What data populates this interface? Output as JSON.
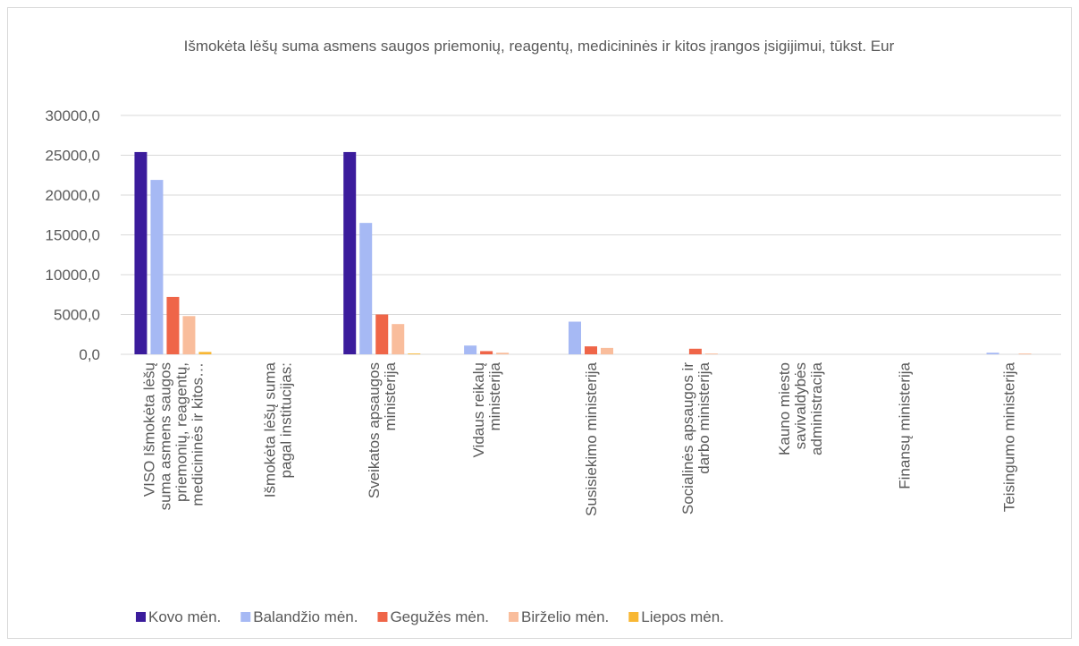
{
  "chart_data": {
    "type": "bar",
    "title": "Išmokėta lėšų suma asmens saugos priemonių, reagentų, medicininės ir kitos įrangos įsigijimui, tūkst. Eur",
    "categories": [
      "VISO Išmokėta lėšų suma asmens saugos priemonių, reagentų, medicininės ir kitos…",
      "Išmokėta lėšų suma pagal institucijas:",
      "Sveikatos apsaugos ministerija",
      "Vidaus reikalų ministerija",
      "Susisiekimo ministerija",
      "Socialinės apsaugos ir darbo ministerija",
      "Kauno miesto savivaldybės administracija",
      "Finansų ministerija",
      "Teisingumo ministerija"
    ],
    "series": [
      {
        "name": "Kovo mėn.",
        "color": "#3b1c9c",
        "values": [
          25400,
          null,
          25400,
          0,
          0,
          0,
          0,
          0,
          0
        ]
      },
      {
        "name": "Balandžio mėn.",
        "color": "#a6b9f4",
        "values": [
          21900,
          null,
          16500,
          1100,
          4100,
          0,
          0,
          0,
          200
        ]
      },
      {
        "name": "Gegužės mėn.",
        "color": "#ef6548",
        "values": [
          7200,
          null,
          5000,
          400,
          1000,
          700,
          0,
          0,
          0
        ]
      },
      {
        "name": "Birželio mėn.",
        "color": "#f9bd9c",
        "values": [
          4800,
          null,
          3800,
          200,
          800,
          100,
          0,
          0,
          100
        ]
      },
      {
        "name": "Liepos mėn.",
        "color": "#f8b733",
        "values": [
          300,
          null,
          100,
          0,
          0,
          0,
          0,
          0,
          0
        ]
      }
    ],
    "ylim": [
      0,
      30000
    ],
    "yticks": [
      {
        "value": 0,
        "label": "0,0"
      },
      {
        "value": 5000,
        "label": "5000,0"
      },
      {
        "value": 10000,
        "label": "10000,0"
      },
      {
        "value": 15000,
        "label": "15000,0"
      },
      {
        "value": 20000,
        "label": "20000,0"
      },
      {
        "value": 25000,
        "label": "25000,0"
      },
      {
        "value": 30000,
        "label": "30000,0"
      }
    ],
    "grid": true,
    "legend": "bottom"
  }
}
